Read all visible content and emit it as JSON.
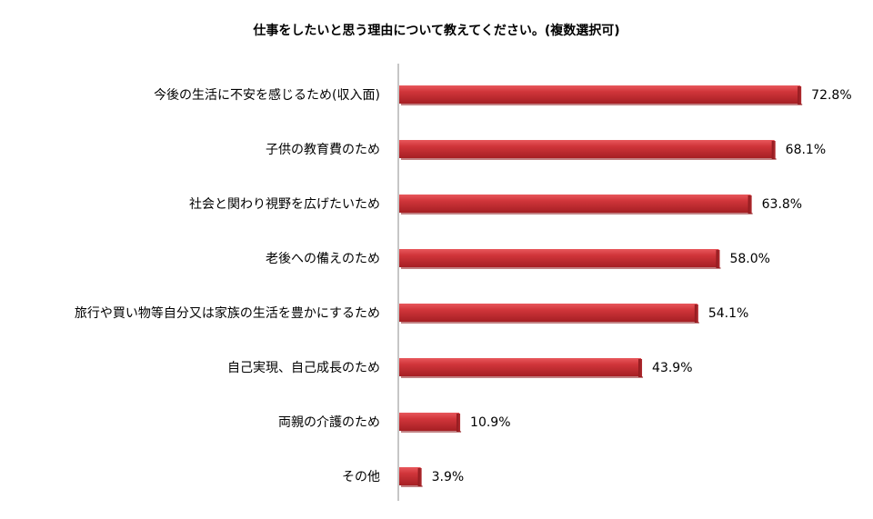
{
  "chart_data": {
    "type": "bar",
    "orientation": "horizontal",
    "title": "仕事をしたいと思う理由について教えてください。(複数選択可)",
    "categories": [
      "今後の生活に不安を感じるため(収入面)",
      "子供の教育費のため",
      "社会と関わり視野を広げたいため",
      "老後への備えのため",
      "旅行や買い物等自分又は家族の生活を豊かにするため",
      "自己実現、自己成長のため",
      "両親の介護のため",
      "その他"
    ],
    "values": [
      72.8,
      68.1,
      63.8,
      58.0,
      54.1,
      43.9,
      10.9,
      3.9
    ],
    "value_labels": [
      "72.8%",
      "68.1%",
      "63.8%",
      "58.0%",
      "54.1%",
      "43.9%",
      "10.9%",
      "3.9%"
    ],
    "xlim": [
      0,
      75
    ],
    "grid": false,
    "legend": "none",
    "bar_color": "#C0272D",
    "bar_highlight_color": "#E8585C",
    "bar_shadow_color": "#8E1A1E"
  }
}
